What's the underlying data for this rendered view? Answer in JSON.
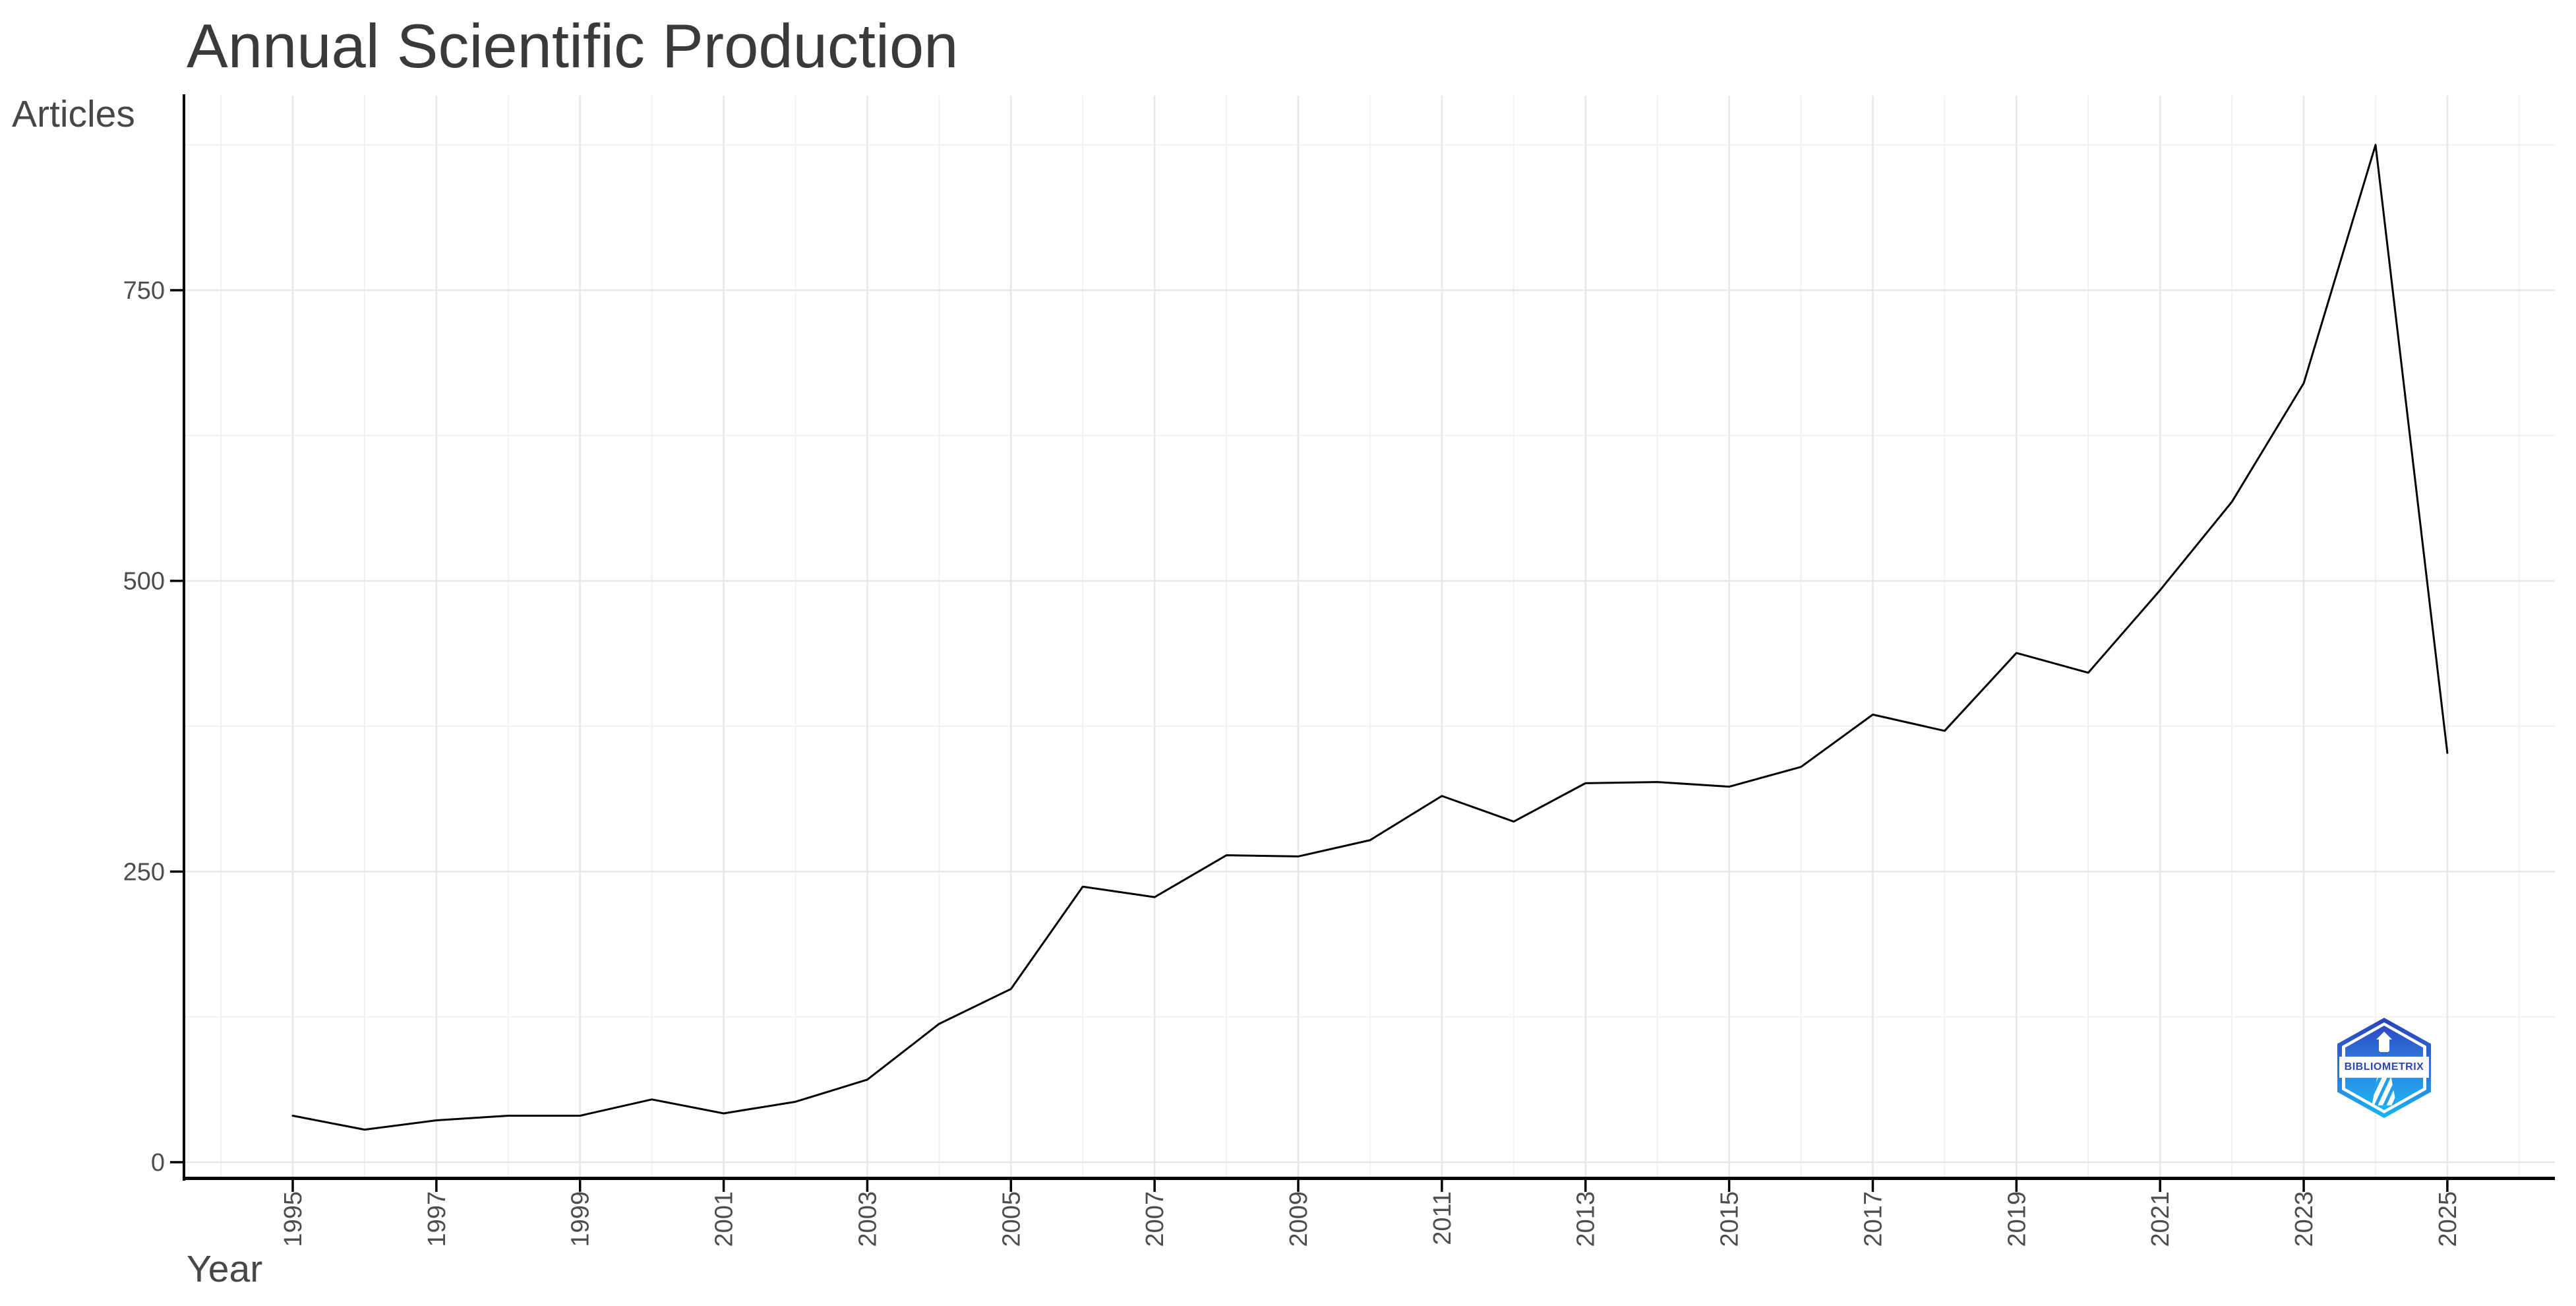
{
  "chart_data": {
    "type": "line",
    "title": "Annual Scientific Production",
    "xlabel": "Year",
    "ylabel": "Articles",
    "x": [
      1995,
      1996,
      1997,
      1998,
      1999,
      2000,
      2001,
      2002,
      2003,
      2004,
      2005,
      2006,
      2007,
      2008,
      2009,
      2010,
      2011,
      2012,
      2013,
      2014,
      2015,
      2016,
      2017,
      2018,
      2019,
      2020,
      2021,
      2022,
      2023,
      2024,
      2025
    ],
    "values": [
      40,
      28,
      36,
      40,
      40,
      54,
      42,
      52,
      71,
      119,
      149,
      237,
      228,
      264,
      263,
      277,
      315,
      293,
      326,
      327,
      323,
      340,
      385,
      371,
      438,
      421,
      492,
      568,
      670,
      875,
      352
    ],
    "x_tick_labels": [
      "1995",
      "1997",
      "1999",
      "2001",
      "2003",
      "2005",
      "2007",
      "2009",
      "2011",
      "2013",
      "2015",
      "2017",
      "2019",
      "2021",
      "2023",
      "2025"
    ],
    "y_ticks": [
      0,
      250,
      500,
      750
    ],
    "y_minor_gridlines": [
      125,
      375,
      625,
      875
    ],
    "x_gridline_years_start": 1994,
    "x_gridline_years_end": 2026,
    "ylim": [
      0,
      917
    ],
    "xlim": [
      1993.5,
      2026.5
    ],
    "grid": "major+minor",
    "legend": "none",
    "line_color": "#000000",
    "axis_color": "#000000",
    "tick_label_color": "#4d4d4d",
    "major_grid_color": "#e7e7e7",
    "minor_grid_color": "#f1f1f1",
    "background": "#ffffff"
  },
  "watermark": {
    "label": "BIBLIOMETRIX",
    "gradient_top": "#2743b8",
    "gradient_bottom": "#16b5f2",
    "text_color": "#2b44bb"
  }
}
